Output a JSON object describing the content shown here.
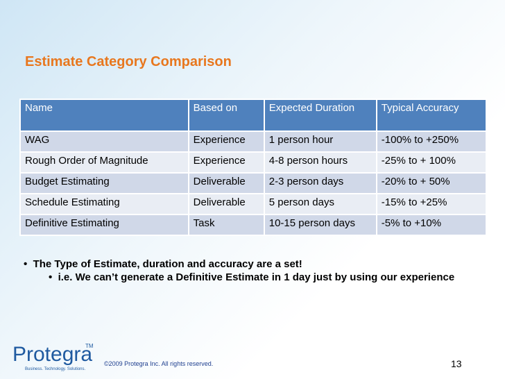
{
  "title": "Estimate Category Comparison",
  "table": {
    "header": [
      "Name",
      "Based on",
      "Expected Duration",
      "Typical Accuracy"
    ],
    "rows": [
      [
        "WAG",
        "Experience",
        "1 person hour",
        "-100% to +250%"
      ],
      [
        "Rough Order of Magnitude",
        "Experience",
        "4-8 person hours",
        "-25% to + 100%"
      ],
      [
        "Budget Estimating",
        "Deliverable",
        "2-3 person days",
        "-20% to + 50%"
      ],
      [
        "Schedule Estimating",
        "Deliverable",
        "5 person days",
        "-15% to +25%"
      ],
      [
        "Definitive Estimating",
        "Task",
        "10-15 person days",
        "-5% to +10%"
      ]
    ]
  },
  "bullets": [
    "The Type of Estimate, duration and accuracy are a set!"
  ],
  "subbullets": [
    "i.e. We can’t generate a Definitive Estimate in 1 day just by using our experience"
  ],
  "footer": {
    "logo": "Protegra",
    "tm": "TM",
    "tagline": "Business. Technology. Solutions.",
    "copyright": "©2009 Protegra Inc. All rights reserved.",
    "page": "13"
  }
}
